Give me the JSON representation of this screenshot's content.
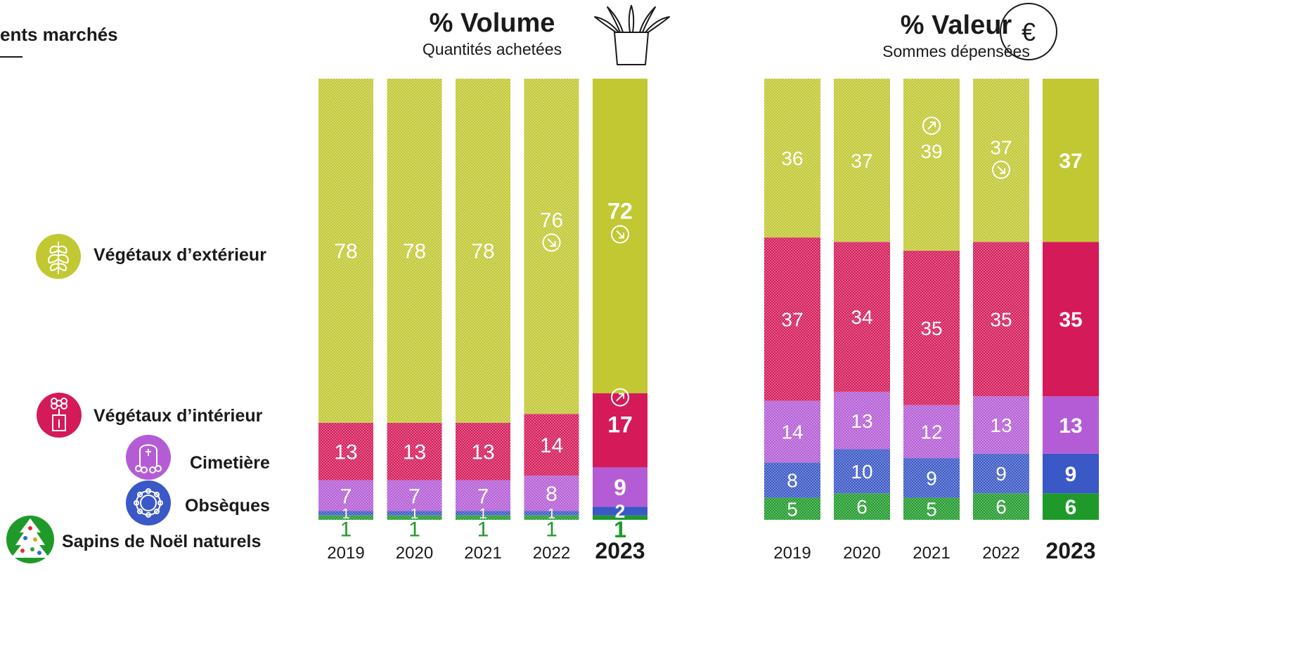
{
  "page_title": "ents marchés",
  "colors": {
    "exterieur": "#c1c832",
    "interieur": "#d41a58",
    "cimetiere": "#b45cd6",
    "obseques": "#3a58c6",
    "sapins": "#1f9a2a"
  },
  "legend": [
    {
      "key": "exterieur",
      "label": "Végétaux d’extérieur",
      "icon": "plant-leaves-icon"
    },
    {
      "key": "interieur",
      "label": "Végétaux d’intérieur",
      "icon": "potted-flower-icon"
    },
    {
      "key": "cimetiere",
      "label": "Cimetière",
      "icon": "tombstone-icon"
    },
    {
      "key": "obseques",
      "label": "Obsèques",
      "icon": "wreath-icon"
    },
    {
      "key": "sapins",
      "label": "Sapins de Noël naturels",
      "icon": "christmas-tree-icon"
    }
  ],
  "chart_data": [
    {
      "type": "bar",
      "stacked": true,
      "title": "% Volume",
      "subtitle": "Quantités achetées",
      "icon": "potted-plant-icon",
      "categories": [
        "2019",
        "2020",
        "2021",
        "2022",
        "2023"
      ],
      "highlight_category": "2023",
      "series": [
        {
          "name": "Sapins de Noël naturels",
          "key": "sapins",
          "values": [
            1,
            1,
            1,
            1,
            1
          ]
        },
        {
          "name": "Obsèques",
          "key": "obseques",
          "values": [
            1,
            1,
            1,
            1,
            2
          ]
        },
        {
          "name": "Cimetière",
          "key": "cimetiere",
          "values": [
            7,
            7,
            7,
            8,
            9
          ]
        },
        {
          "name": "Végétaux d’intérieur",
          "key": "interieur",
          "values": [
            13,
            13,
            13,
            14,
            17
          ]
        },
        {
          "name": "Végétaux d’extérieur",
          "key": "exterieur",
          "values": [
            78,
            78,
            78,
            76,
            72
          ]
        }
      ],
      "trend_arrows": [
        {
          "series": "exterieur",
          "category": "2022",
          "direction": "down"
        },
        {
          "series": "exterieur",
          "category": "2023",
          "direction": "down"
        },
        {
          "series": "interieur",
          "category": "2023",
          "direction": "up"
        }
      ]
    },
    {
      "type": "bar",
      "stacked": true,
      "title": "% Valeur",
      "subtitle": "Sommes dépensées",
      "icon": "euro-icon",
      "icon_glyph": "€",
      "categories": [
        "2019",
        "2020",
        "2021",
        "2022",
        "2023"
      ],
      "highlight_category": "2023",
      "series": [
        {
          "name": "Sapins de Noël naturels",
          "key": "sapins",
          "values": [
            5,
            6,
            5,
            6,
            6
          ]
        },
        {
          "name": "Obsèques",
          "key": "obseques",
          "values": [
            8,
            10,
            9,
            9,
            9
          ]
        },
        {
          "name": "Cimetière",
          "key": "cimetiere",
          "values": [
            14,
            13,
            12,
            13,
            13
          ]
        },
        {
          "name": "Végétaux d’intérieur",
          "key": "interieur",
          "values": [
            37,
            34,
            35,
            35,
            35
          ]
        },
        {
          "name": "Végétaux d’extérieur",
          "key": "exterieur",
          "values": [
            36,
            37,
            39,
            37,
            37
          ]
        }
      ],
      "trend_arrows": [
        {
          "series": "exterieur",
          "category": "2021",
          "direction": "up"
        },
        {
          "series": "exterieur",
          "category": "2022",
          "direction": "down"
        }
      ]
    }
  ]
}
